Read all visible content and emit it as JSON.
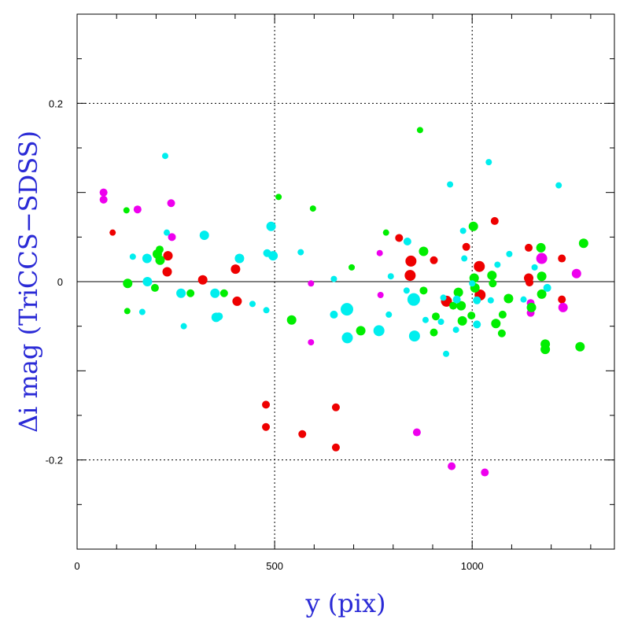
{
  "chart_data": {
    "type": "scatter",
    "xlabel": "y (pix)",
    "ylabel": "Δi mag (TriCCS−SDSS)",
    "xlim": [
      0,
      1360
    ],
    "ylim": [
      -0.3,
      0.3
    ],
    "x_ticks": [
      0,
      500,
      1000
    ],
    "y_ticks": [
      -0.2,
      0,
      0.2
    ],
    "x_tick_labels": [
      "0",
      "500",
      "1000"
    ],
    "y_tick_labels": [
      "-0.2",
      "0",
      "0.2"
    ],
    "x_gridlines": [
      500,
      1000
    ],
    "y_gridlines": [
      -0.2,
      0.2
    ],
    "zero_line": 0,
    "grid": true,
    "colors": {
      "red": "#ee0000",
      "magenta": "#ee00ee",
      "green": "#00ee00",
      "cyan": "#00eeee"
    },
    "series": [
      {
        "color": "red",
        "points": [
          [
            90,
            0.055,
            4
          ],
          [
            230,
            0.029,
            6
          ],
          [
            228,
            0.011,
            6
          ],
          [
            318,
            0.002,
            6
          ],
          [
            401,
            0.014,
            6
          ],
          [
            405,
            -0.022,
            6
          ],
          [
            478,
            -0.138,
            5
          ],
          [
            478,
            -0.163,
            5
          ],
          [
            570,
            -0.171,
            5
          ],
          [
            655,
            -0.141,
            5
          ],
          [
            655,
            -0.186,
            5
          ],
          [
            815,
            0.049,
            5
          ],
          [
            845,
            0.023,
            7
          ],
          [
            843,
            0.007,
            7
          ],
          [
            903,
            0.024,
            5
          ],
          [
            935,
            -0.022,
            7
          ],
          [
            985,
            0.039,
            5
          ],
          [
            1018,
            0.017,
            7
          ],
          [
            1020,
            -0.015,
            7
          ],
          [
            1057,
            0.068,
            5
          ],
          [
            1143,
            0.038,
            5
          ],
          [
            1143,
            0.004,
            6
          ],
          [
            1145,
            -0.001,
            5
          ],
          [
            1227,
            0.026,
            5
          ],
          [
            1227,
            -0.02,
            5
          ]
        ]
      },
      {
        "color": "magenta",
        "points": [
          [
            67,
            0.1,
            5
          ],
          [
            67,
            0.092,
            5
          ],
          [
            153,
            0.081,
            5
          ],
          [
            238,
            0.088,
            5
          ],
          [
            240,
            0.05,
            5
          ],
          [
            592,
            -0.002,
            4
          ],
          [
            592,
            -0.068,
            4
          ],
          [
            766,
            0.032,
            4
          ],
          [
            768,
            -0.015,
            4
          ],
          [
            860,
            -0.169,
            5
          ],
          [
            948,
            -0.207,
            5
          ],
          [
            1032,
            -0.214,
            5
          ],
          [
            1148,
            -0.024,
            5
          ],
          [
            1148,
            -0.035,
            5
          ],
          [
            1176,
            0.026,
            7
          ],
          [
            1230,
            -0.029,
            6
          ],
          [
            1264,
            0.009,
            6
          ]
        ]
      },
      {
        "color": "green",
        "points": [
          [
            125,
            0.08,
            4
          ],
          [
            128,
            -0.002,
            6
          ],
          [
            127,
            -0.033,
            4
          ],
          [
            197,
            -0.007,
            5
          ],
          [
            203,
            0.031,
            6
          ],
          [
            209,
            0.036,
            5
          ],
          [
            210,
            0.024,
            6
          ],
          [
            287,
            -0.013,
            5
          ],
          [
            372,
            -0.013,
            5
          ],
          [
            510,
            0.095,
            4
          ],
          [
            543,
            -0.043,
            6
          ],
          [
            597,
            0.082,
            4
          ],
          [
            695,
            0.016,
            4
          ],
          [
            718,
            -0.055,
            6
          ],
          [
            782,
            0.055,
            4
          ],
          [
            868,
            0.17,
            4
          ],
          [
            877,
            0.034,
            6
          ],
          [
            877,
            -0.01,
            5
          ],
          [
            903,
            -0.057,
            5
          ],
          [
            908,
            -0.039,
            5
          ],
          [
            952,
            -0.027,
            5
          ],
          [
            965,
            -0.012,
            6
          ],
          [
            972,
            -0.027,
            6
          ],
          [
            975,
            -0.044,
            6
          ],
          [
            998,
            -0.038,
            5
          ],
          [
            1003,
            0.062,
            6
          ],
          [
            1005,
            0.004,
            6
          ],
          [
            1007,
            -0.007,
            6
          ],
          [
            1050,
            0.007,
            6
          ],
          [
            1052,
            -0.002,
            5
          ],
          [
            1060,
            -0.047,
            6
          ],
          [
            1075,
            -0.058,
            5
          ],
          [
            1077,
            -0.037,
            5
          ],
          [
            1092,
            -0.019,
            6
          ],
          [
            1150,
            -0.029,
            6
          ],
          [
            1174,
            0.038,
            6
          ],
          [
            1176,
            0.006,
            6
          ],
          [
            1176,
            -0.014,
            6
          ],
          [
            1185,
            -0.07,
            6
          ],
          [
            1185,
            -0.076,
            6
          ],
          [
            1273,
            -0.073,
            6
          ],
          [
            1282,
            0.043,
            6
          ]
        ]
      },
      {
        "color": "cyan",
        "points": [
          [
            141,
            0.028,
            4
          ],
          [
            165,
            -0.034,
            4
          ],
          [
            177,
            0.026,
            6
          ],
          [
            178,
            0.0,
            6
          ],
          [
            223,
            0.141,
            4
          ],
          [
            227,
            0.055,
            4
          ],
          [
            263,
            -0.013,
            6
          ],
          [
            270,
            -0.05,
            4
          ],
          [
            322,
            0.052,
            6
          ],
          [
            349,
            -0.013,
            6
          ],
          [
            352,
            -0.04,
            6
          ],
          [
            359,
            -0.039,
            5
          ],
          [
            411,
            0.026,
            6
          ],
          [
            444,
            -0.025,
            4
          ],
          [
            479,
            -0.032,
            4
          ],
          [
            481,
            0.032,
            5
          ],
          [
            491,
            0.062,
            6
          ],
          [
            496,
            0.029,
            6
          ],
          [
            566,
            0.033,
            4
          ],
          [
            650,
            0.003,
            4
          ],
          [
            650,
            -0.037,
            5
          ],
          [
            683,
            -0.031,
            8
          ],
          [
            684,
            -0.063,
            7
          ],
          [
            764,
            -0.055,
            7
          ],
          [
            789,
            -0.037,
            4
          ],
          [
            794,
            0.006,
            4
          ],
          [
            834,
            -0.01,
            4
          ],
          [
            836,
            0.045,
            5
          ],
          [
            852,
            -0.02,
            8
          ],
          [
            854,
            -0.061,
            7
          ],
          [
            882,
            -0.043,
            4
          ],
          [
            921,
            -0.045,
            4
          ],
          [
            927,
            -0.018,
            4
          ],
          [
            934,
            -0.081,
            4
          ],
          [
            944,
            0.109,
            4
          ],
          [
            959,
            -0.054,
            4
          ],
          [
            961,
            -0.02,
            5
          ],
          [
            977,
            0.057,
            4
          ],
          [
            980,
            0.026,
            4
          ],
          [
            1000,
            -0.002,
            4
          ],
          [
            1012,
            -0.021,
            5
          ],
          [
            1012,
            -0.048,
            5
          ],
          [
            1042,
            0.134,
            4
          ],
          [
            1047,
            -0.021,
            4
          ],
          [
            1064,
            0.019,
            4
          ],
          [
            1094,
            0.031,
            4
          ],
          [
            1130,
            -0.02,
            4
          ],
          [
            1158,
            0.016,
            4
          ],
          [
            1190,
            -0.007,
            5
          ],
          [
            1219,
            0.108,
            4
          ]
        ]
      }
    ]
  }
}
